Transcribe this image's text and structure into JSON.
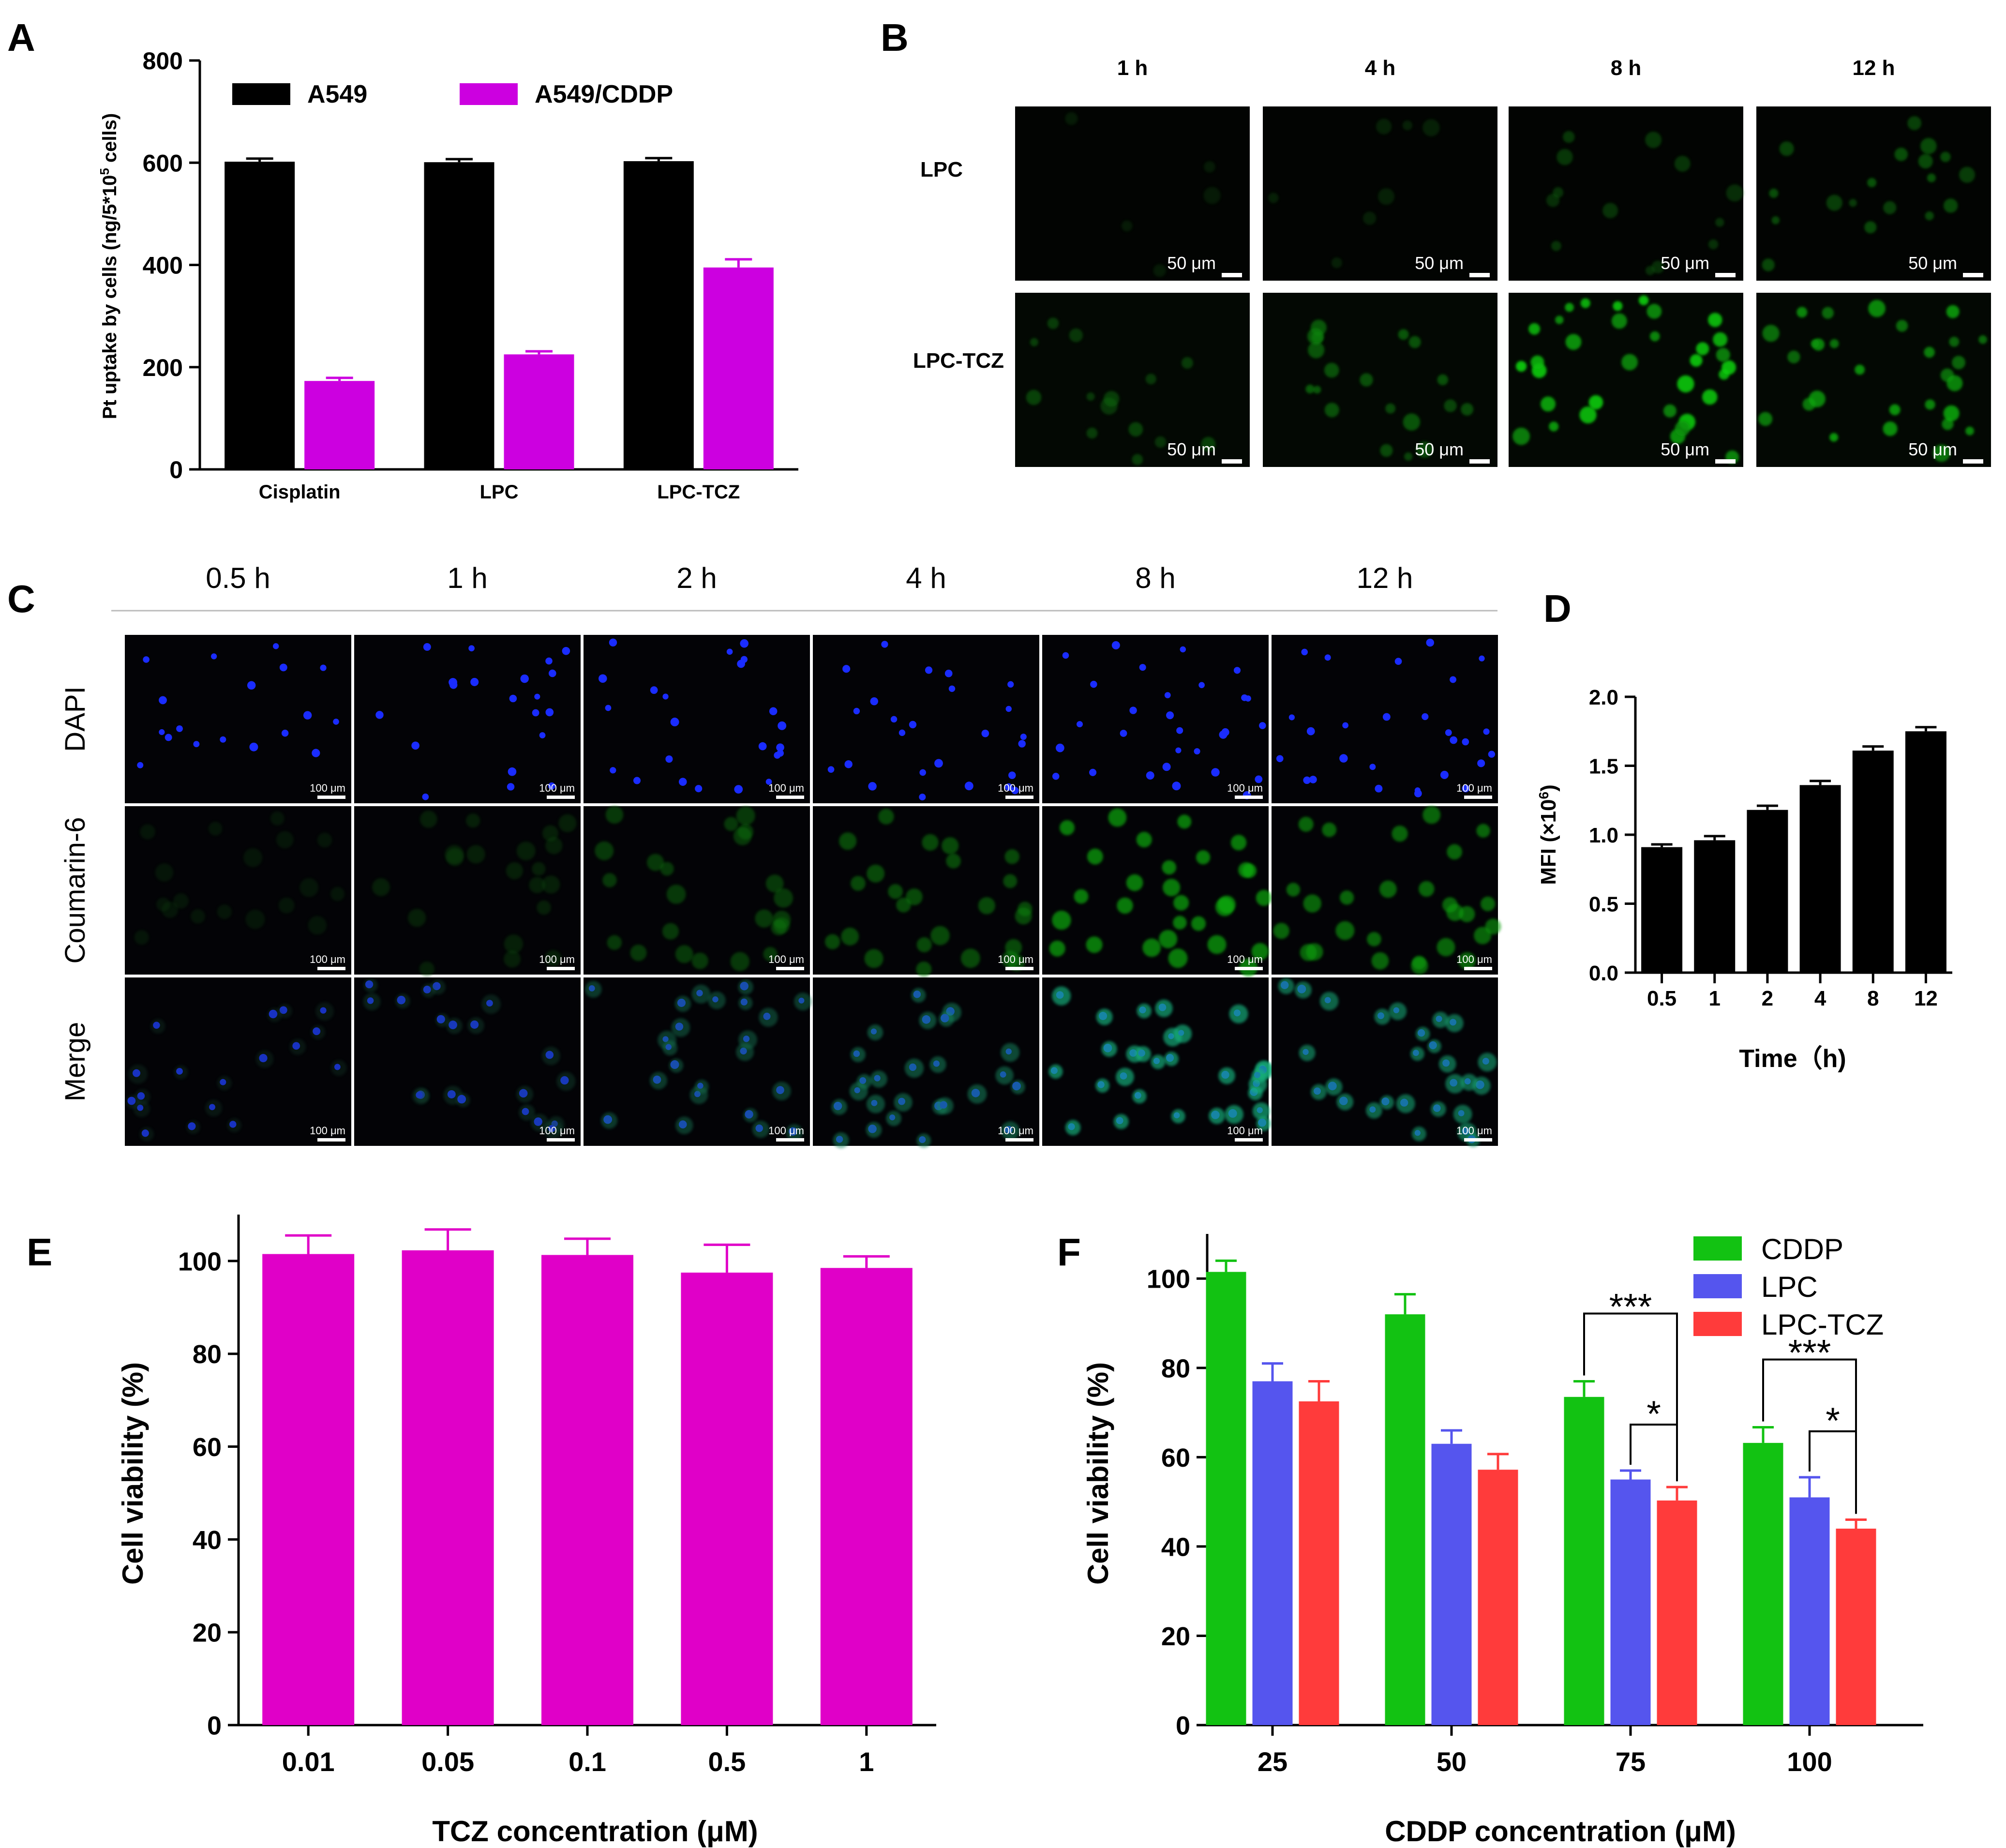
{
  "panels": {
    "A": "A",
    "B": "B",
    "C": "C",
    "D": "D",
    "E": "E",
    "F": "F"
  },
  "chart_data": [
    {
      "id": "A",
      "type": "bar",
      "title": "",
      "xlabel": "",
      "ylabel": "Pt uptake by cells (ng/5*10",
      "ylabel_sup": "5",
      "ylabel_end": " cells)",
      "ylim": [
        0,
        800
      ],
      "yticks": [
        "0",
        "200",
        "400",
        "600",
        "800"
      ],
      "categories": [
        "Cisplatin",
        "LPC",
        "LPC-TCZ"
      ],
      "series": [
        {
          "name": "A549",
          "color": "#000000",
          "values": [
            602,
            601,
            603
          ],
          "errors": [
            6,
            6,
            6
          ]
        },
        {
          "name": "A549/CDDP",
          "color": "#cc00e0",
          "values": [
            173,
            225,
            395
          ],
          "errors": [
            6,
            6,
            16
          ]
        }
      ],
      "legend": "top"
    },
    {
      "id": "D",
      "type": "bar",
      "xlabel": "Time（h)",
      "ylabel": "MFI (×10",
      "ylabel_sup": "6",
      "ylabel_end": ")",
      "ylim": [
        0,
        2.0
      ],
      "yticks": [
        "0.0",
        "0.5",
        "1.0",
        "1.5",
        "2.0"
      ],
      "categories": [
        "0.5",
        "1",
        "2",
        "4",
        "8",
        "12"
      ],
      "series": [
        {
          "name": "MFI",
          "color": "#000000",
          "values": [
            0.91,
            0.96,
            1.18,
            1.36,
            1.61,
            1.75
          ],
          "errors": [
            0.02,
            0.03,
            0.03,
            0.03,
            0.03,
            0.03
          ]
        }
      ]
    },
    {
      "id": "E",
      "type": "bar",
      "xlabel": "TCZ concentration (μM)",
      "ylabel": "Cell viability (%)",
      "ylim": [
        0,
        110
      ],
      "yticks": [
        "0",
        "20",
        "40",
        "60",
        "80",
        "100"
      ],
      "categories": [
        "0.01",
        "0.05",
        "0.1",
        "0.5",
        "1"
      ],
      "series": [
        {
          "name": "TCZ",
          "color": "#e000c8",
          "values": [
            101.5,
            102.3,
            101.3,
            97.5,
            98.5
          ],
          "errors": [
            4,
            4.5,
            3.5,
            6,
            2.5
          ]
        }
      ]
    },
    {
      "id": "F",
      "type": "bar",
      "xlabel": "CDDP concentration (μM)",
      "ylabel": "Cell viability (%)",
      "ylim": [
        0,
        110
      ],
      "yticks": [
        "0",
        "20",
        "40",
        "60",
        "80",
        "100"
      ],
      "categories": [
        "25",
        "50",
        "75",
        "100"
      ],
      "series": [
        {
          "name": "CDDP",
          "color": "#12c212",
          "values": [
            101.5,
            92,
            73.5,
            63.2
          ],
          "errors": [
            2.5,
            4.5,
            3.5,
            3.5
          ]
        },
        {
          "name": "LPC",
          "color": "#5555ee",
          "values": [
            77,
            63,
            55,
            51
          ],
          "errors": [
            4,
            3,
            2,
            4.5
          ]
        },
        {
          "name": "LPC-TCZ",
          "color": "#ff3b3b",
          "values": [
            72.5,
            57.2,
            50.3,
            44
          ],
          "errors": [
            4.5,
            3.5,
            3,
            2
          ]
        }
      ],
      "legend": "top-right",
      "significance": [
        {
          "category": "75",
          "from": "CDDP",
          "to": "LPC-TCZ",
          "label": "***"
        },
        {
          "category": "75",
          "from": "LPC",
          "to": "LPC-TCZ",
          "label": "*"
        },
        {
          "category": "100",
          "from": "CDDP",
          "to": "LPC-TCZ",
          "label": "***"
        },
        {
          "category": "100",
          "from": "LPC",
          "to": "LPC-TCZ",
          "label": "*"
        }
      ]
    }
  ],
  "micrographs_B": {
    "times": [
      "1 h",
      "4 h",
      "8 h",
      "12 h"
    ],
    "rows": [
      "LPC",
      "LPC-TCZ"
    ],
    "scale_bar": "50 μm",
    "intensity": [
      [
        0.04,
        0.1,
        0.25,
        0.4
      ],
      [
        0.3,
        0.45,
        0.85,
        0.7
      ]
    ]
  },
  "micrographs_C": {
    "times": [
      "0.5 h",
      "1 h",
      "2 h",
      "4 h",
      "8 h",
      "12 h"
    ],
    "rows": [
      "DAPI",
      "Coumarin-6",
      "Merge"
    ],
    "scale_bar": "100 μm",
    "green_intensity": [
      0.15,
      0.25,
      0.45,
      0.55,
      0.8,
      0.7
    ]
  }
}
